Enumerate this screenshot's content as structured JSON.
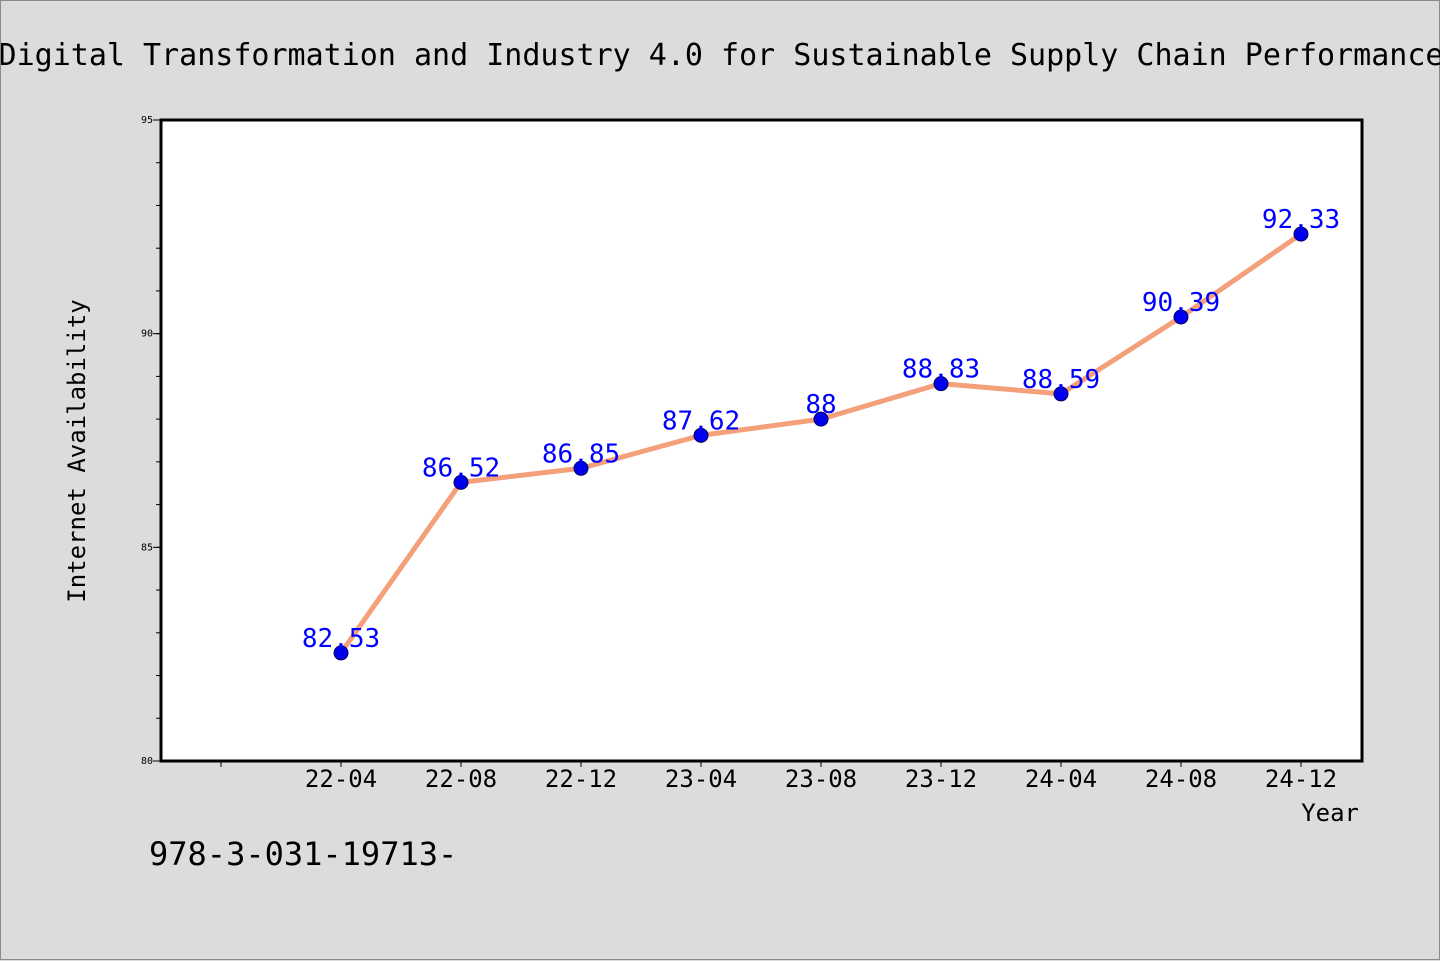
{
  "chart_data": {
    "type": "line",
    "title": "Digital Transformation and Industry 4.0 for Sustainable Supply Chain Performance",
    "xlabel": "Year",
    "ylabel": "Internet Availability",
    "categories": [
      "22-04",
      "22-08",
      "22-12",
      "23-04",
      "23-08",
      "23-12",
      "24-04",
      "24-08",
      "24-12"
    ],
    "series": [
      {
        "values": [
          82.53,
          86.52,
          86.85,
          87.62,
          88,
          88.83,
          88.59,
          90.39,
          92.33
        ]
      }
    ],
    "data_labels": [
      "82.53",
      "86.52",
      "86.85",
      "87.62",
      "88",
      "88.83",
      "88.59",
      "90.39",
      "92.33"
    ],
    "ylim": [
      80,
      95
    ],
    "y_ticks": [
      80,
      85,
      90,
      95
    ],
    "y_minor_step": 1,
    "grid": false,
    "legend": "none",
    "colors": {
      "line": "#f4a07a",
      "marker": "#0000ee",
      "label": "#0000ff",
      "plot_background": "#ffffff",
      "figure_background": "#dcdcdc"
    }
  },
  "footnote": "978-3-031-19713-"
}
